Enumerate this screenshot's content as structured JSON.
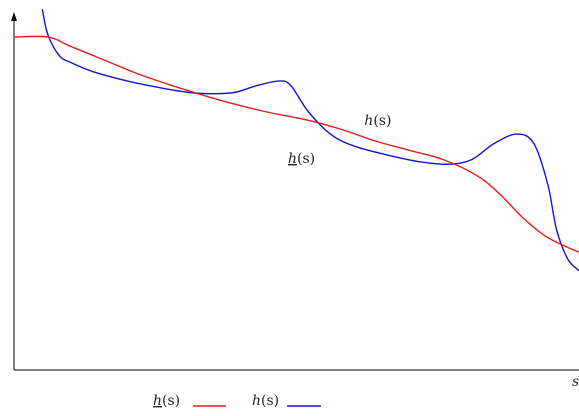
{
  "chart_data": {
    "type": "line",
    "title": "",
    "xlabel": "s",
    "ylabel": "",
    "grid": false,
    "legend_position": "bottom",
    "series": [
      {
        "name": "h(s)",
        "display": "h",
        "color": "#1414d2",
        "style": "upper",
        "points": [
          [
            0.05,
            0.56
          ],
          [
            0.06,
            0.45
          ],
          [
            0.08,
            0.36
          ],
          [
            0.1,
            0.33
          ],
          [
            0.14,
            0.29
          ],
          [
            0.2,
            0.25
          ],
          [
            0.26,
            0.22
          ],
          [
            0.31,
            0.2
          ],
          [
            0.35,
            0.195
          ],
          [
            0.39,
            0.2
          ],
          [
            0.43,
            0.23
          ],
          [
            0.47,
            0.25
          ],
          [
            0.49,
            0.23
          ],
          [
            0.52,
            0.12
          ],
          [
            0.56,
            0.02
          ],
          [
            0.6,
            -0.03
          ],
          [
            0.66,
            -0.07
          ],
          [
            0.72,
            -0.1
          ],
          [
            0.77,
            -0.11
          ],
          [
            0.81,
            -0.09
          ],
          [
            0.85,
            -0.02
          ],
          [
            0.89,
            0.02
          ],
          [
            0.92,
            -0.02
          ],
          [
            0.945,
            -0.2
          ],
          [
            0.96,
            -0.39
          ],
          [
            0.98,
            -0.52
          ],
          [
            1.0,
            -0.57
          ]
        ]
      },
      {
        "name": "h(s)",
        "display": "h",
        "underline": true,
        "color": "#e41c1c",
        "style": "lower",
        "points": [
          [
            0.0,
            0.44
          ],
          [
            0.06,
            0.44
          ],
          [
            0.1,
            0.4
          ],
          [
            0.16,
            0.34
          ],
          [
            0.22,
            0.28
          ],
          [
            0.28,
            0.23
          ],
          [
            0.36,
            0.17
          ],
          [
            0.44,
            0.12
          ],
          [
            0.52,
            0.08
          ],
          [
            0.58,
            0.04
          ],
          [
            0.64,
            -0.01
          ],
          [
            0.7,
            -0.05
          ],
          [
            0.76,
            -0.09
          ],
          [
            0.82,
            -0.16
          ],
          [
            0.86,
            -0.24
          ],
          [
            0.9,
            -0.34
          ],
          [
            0.94,
            -0.42
          ],
          [
            0.98,
            -0.47
          ],
          [
            1.0,
            -0.49
          ]
        ]
      }
    ],
    "annotations": [
      {
        "target": "upper",
        "x": 0.62,
        "y": 0.06
      },
      {
        "target": "lower",
        "x": 0.485,
        "y": -0.105
      }
    ],
    "xlim": [
      0,
      1
    ],
    "ylim": [
      -1,
      0.6
    ]
  }
}
